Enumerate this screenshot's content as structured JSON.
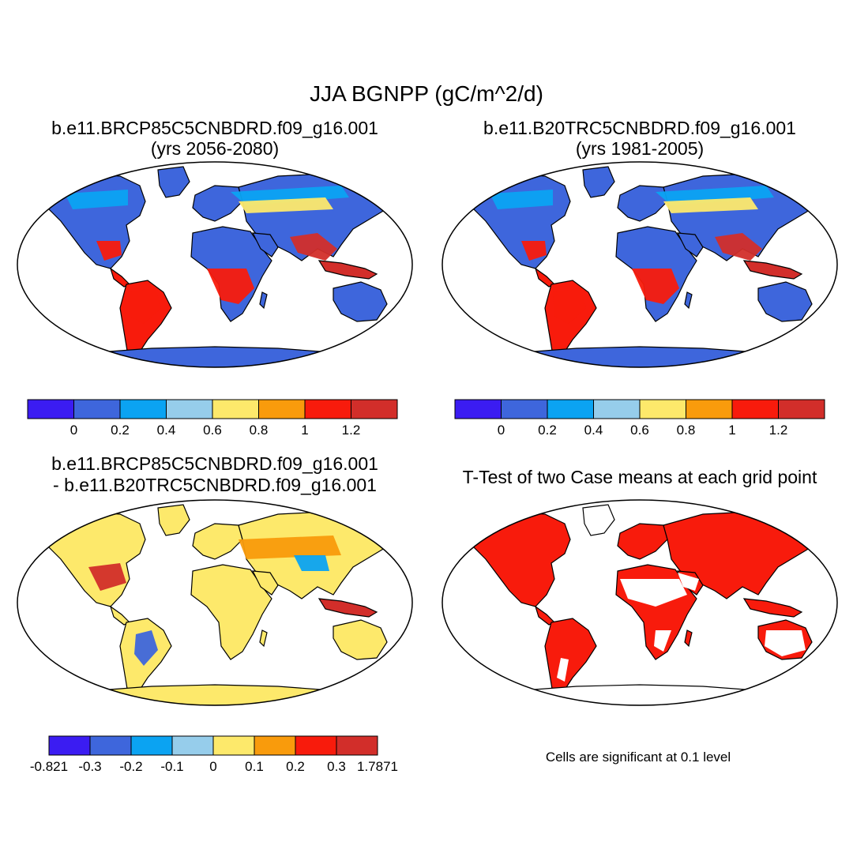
{
  "figure": {
    "title": "JJA BGNPP (gC/m^2/d)"
  },
  "panels": [
    {
      "title_line1": "b.e11.BRCP85C5CNBDRD.f09_g16.001",
      "title_line2": "(yrs 2056-2080)",
      "type": "field"
    },
    {
      "title_line1": "b.e11.B20TRC5CNBDRD.f09_g16.001",
      "title_line2": "(yrs 1981-2005)",
      "type": "field"
    },
    {
      "title_line1": "b.e11.BRCP85C5CNBDRD.f09_g16.001",
      "title_line2": "- b.e11.B20TRC5CNBDRD.f09_g16.001",
      "type": "difference"
    },
    {
      "title_line1": "T-Test of two Case means at each grid point",
      "title_line2": "",
      "type": "significance",
      "note": "Cells are significant at 0.1 level"
    }
  ],
  "colorbars": {
    "field": {
      "colors": [
        "#3b1cf2",
        "#3e66dc",
        "#0ba3f2",
        "#96cdeb",
        "#fde96b",
        "#f99b0c",
        "#f81b0c",
        "#d22e2a"
      ],
      "labels": [
        "0",
        "0.2",
        "0.4",
        "0.6",
        "0.8",
        "1",
        "1.2"
      ]
    },
    "difference": {
      "colors": [
        "#3b1cf2",
        "#3e66dc",
        "#0ba3f2",
        "#96cdeb",
        "#fde96b",
        "#f99b0c",
        "#f81b0c",
        "#d22e2a"
      ],
      "labels": [
        "-0.821",
        "-0.3",
        "-0.2",
        "-0.1",
        "0",
        "0.1",
        "0.2",
        "0.3",
        "1.7871"
      ]
    }
  },
  "map_colors": {
    "ocean": "#ffffff",
    "outline": "#000000",
    "significant": "#f81b0c"
  }
}
